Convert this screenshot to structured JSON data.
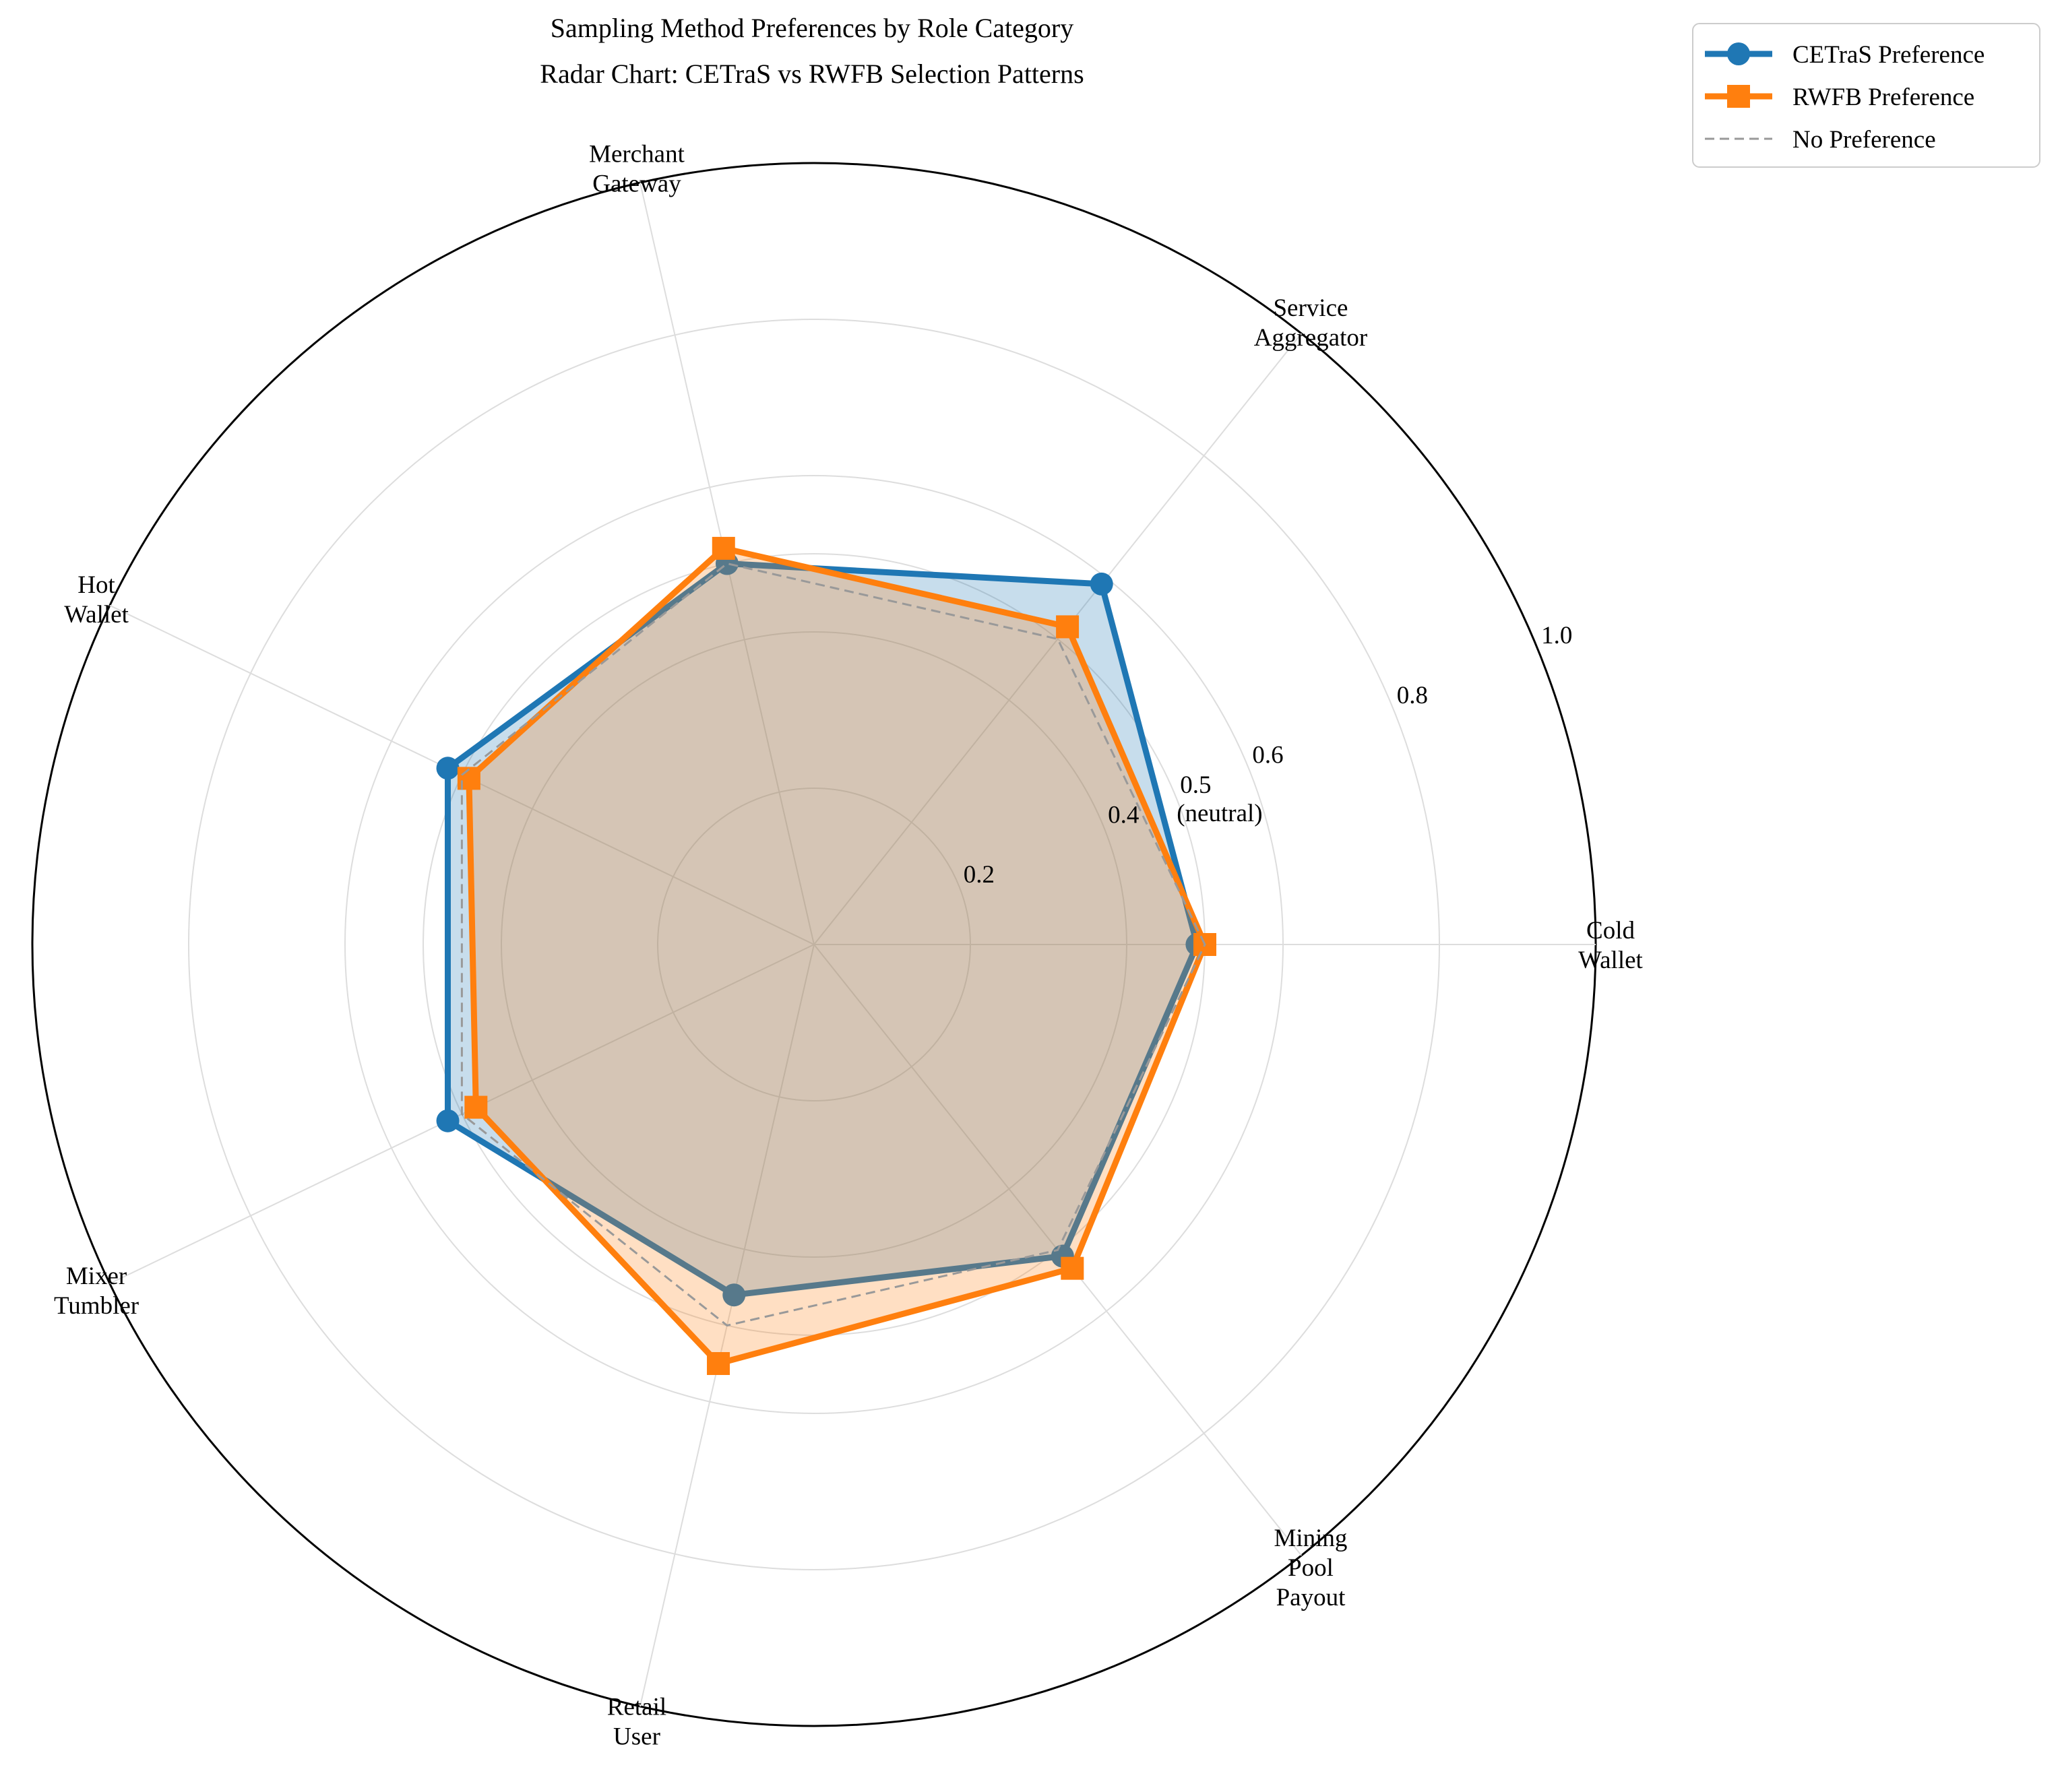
{
  "chart_data": {
    "type": "radar",
    "title": "Sampling Method Preferences by Role Category",
    "subtitle": "Radar Chart: CETraS vs RWFB Selection Patterns",
    "categories": [
      [
        "Cold",
        "Wallet"
      ],
      [
        "Service",
        "Aggregator"
      ],
      [
        "Merchant",
        "Gateway"
      ],
      [
        "Hot",
        "Wallet"
      ],
      [
        "Mixer",
        "Tumbler"
      ],
      [
        "Retail",
        "User"
      ],
      [
        "Mining",
        "Pool",
        "Payout"
      ]
    ],
    "rlim": [
      0,
      1.0
    ],
    "rticks": [
      {
        "value": 0.2,
        "label": "0.2"
      },
      {
        "value": 0.4,
        "label": "0.4"
      },
      {
        "value": 0.5,
        "label": "0.5",
        "label2": "(neutral)"
      },
      {
        "value": 0.6,
        "label": "0.6"
      },
      {
        "value": 0.8,
        "label": "0.8"
      },
      {
        "value": 1.0,
        "label": "1.0"
      }
    ],
    "series": [
      {
        "name": "CETraS Preference",
        "color": "#1f77b4",
        "marker": "circle",
        "values": [
          0.49,
          0.59,
          0.5,
          0.52,
          0.52,
          0.46,
          0.51
        ]
      },
      {
        "name": "RWFB Preference",
        "color": "#ff7f0e",
        "marker": "square",
        "values": [
          0.5,
          0.52,
          0.52,
          0.49,
          0.48,
          0.55,
          0.53
        ]
      },
      {
        "name": "No Preference",
        "color": "#999999",
        "marker": "none",
        "dashed": true,
        "values": [
          0.5,
          0.5,
          0.5,
          0.5,
          0.5,
          0.5,
          0.5
        ]
      }
    ],
    "grid": true,
    "legend": "top-right outside"
  }
}
